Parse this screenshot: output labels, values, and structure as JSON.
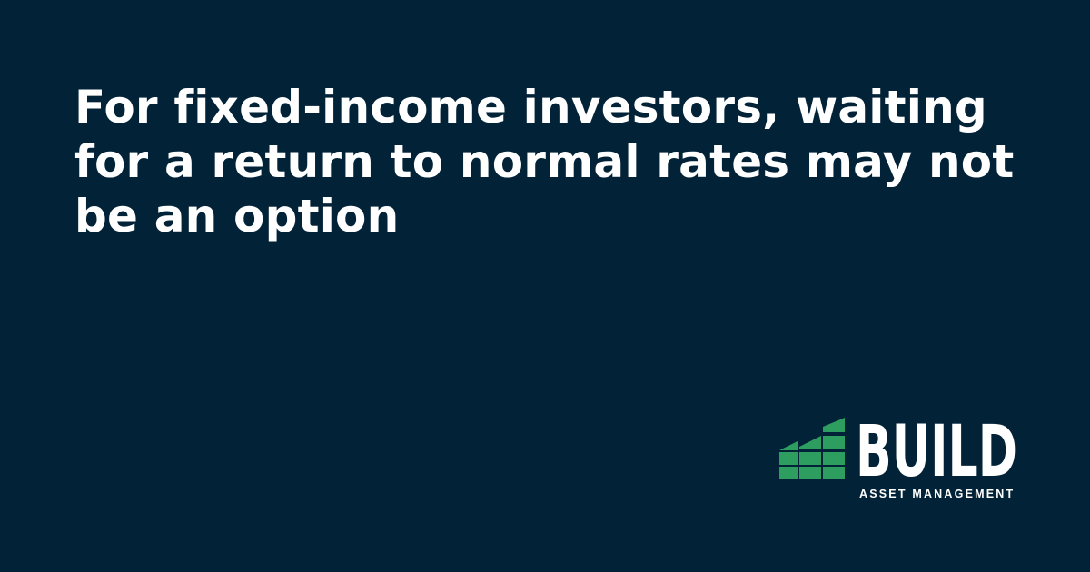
{
  "headline": "For fixed-income investors, waiting for a return to normal rates may not be an option",
  "logo": {
    "name": "BUILD",
    "tagline": "ASSET MANAGEMENT",
    "icon": "stepped-building-icon"
  },
  "colors": {
    "background": "#022237",
    "text": "#ffffff",
    "accent": "#2e9e60"
  }
}
